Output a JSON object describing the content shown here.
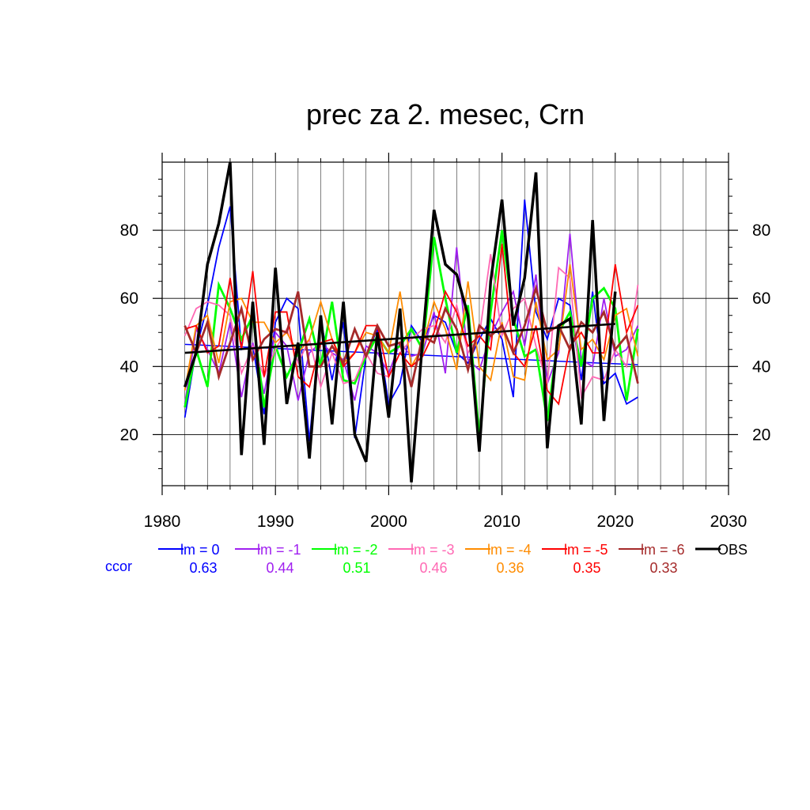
{
  "chart_data": {
    "type": "line",
    "title": "prec za 2. mesec, Crn",
    "xlabel": "",
    "ylabel": "",
    "xlim": [
      1980,
      2030
    ],
    "ylim": [
      5,
      100
    ],
    "x_ticks": [
      1980,
      1990,
      2000,
      2010,
      2020,
      2030
    ],
    "y_ticks": [
      20,
      40,
      60,
      80
    ],
    "grid": true,
    "legend_position": "bottom",
    "ccor_label": "ccor",
    "ccor_color": "#0000ff",
    "x": [
      1982,
      1983,
      1984,
      1985,
      1986,
      1987,
      1988,
      1989,
      1990,
      1991,
      1992,
      1993,
      1994,
      1995,
      1996,
      1997,
      1998,
      1999,
      2000,
      2001,
      2002,
      2003,
      2004,
      2005,
      2006,
      2007,
      2008,
      2009,
      2010,
      2011,
      2012,
      2013,
      2014,
      2015,
      2016,
      2017,
      2018,
      2019,
      2020,
      2021,
      2022
    ],
    "series": [
      {
        "name": "lm = 0",
        "color": "#0000ff",
        "width": 1.8,
        "ccor": "0.63",
        "values": [
          25,
          45,
          58,
          75,
          87,
          45,
          46,
          26,
          53,
          60,
          57,
          18,
          54,
          36,
          53,
          19,
          43,
          51,
          29,
          35,
          52,
          47,
          55,
          53,
          44,
          41,
          48,
          54,
          48,
          31,
          89,
          56,
          48,
          60,
          58,
          36,
          62,
          35,
          38,
          29,
          31
        ],
        "trend": [
          [
            1982,
            46.5
          ],
          [
            2022,
            40.5
          ]
        ]
      },
      {
        "name": "lm = -1",
        "color": "#a020f0",
        "width": 1.8,
        "ccor": "0.44",
        "values": [
          29,
          51,
          45,
          38,
          53,
          31,
          47,
          32,
          50,
          46,
          30,
          44,
          47,
          44,
          42,
          30,
          46,
          44,
          38,
          47,
          43,
          44,
          56,
          38,
          75,
          42,
          39,
          49,
          56,
          62,
          46,
          67,
          35,
          44,
          79,
          42,
          40,
          60,
          43,
          45,
          52
        ]
      },
      {
        "name": "lm = -2",
        "color": "#00ff00",
        "width": 2.8,
        "ccor": "0.51",
        "values": [
          28,
          45,
          34,
          64,
          57,
          48,
          55,
          28,
          46,
          37,
          44,
          54,
          40,
          59,
          36,
          35,
          43,
          49,
          44,
          46,
          51,
          45,
          78,
          60,
          44,
          58,
          19,
          56,
          80,
          54,
          43,
          45,
          24,
          50,
          56,
          40,
          60,
          63,
          57,
          30,
          51
        ]
      },
      {
        "name": "lm = -3",
        "color": "#ff69b4",
        "width": 1.8,
        "ccor": "0.46",
        "values": [
          49,
          57,
          59,
          58,
          55,
          38,
          46,
          37,
          45,
          51,
          41,
          48,
          34,
          44,
          35,
          36,
          44,
          38,
          37,
          44,
          48,
          51,
          52,
          47,
          58,
          44,
          49,
          73,
          49,
          57,
          60,
          46,
          35,
          69,
          66,
          31,
          37,
          36,
          45,
          40,
          64
        ]
      },
      {
        "name": "lm = -4",
        "color": "#ff8c00",
        "width": 1.8,
        "ccor": "0.36",
        "values": [
          33,
          52,
          55,
          41,
          59,
          60,
          53,
          53,
          47,
          50,
          44,
          48,
          59,
          48,
          41,
          44,
          50,
          49,
          44,
          62,
          40,
          46,
          59,
          51,
          39,
          65,
          40,
          36,
          53,
          37,
          36,
          59,
          42,
          45,
          70,
          45,
          48,
          42,
          55,
          57,
          43
        ]
      },
      {
        "name": "lm = -5",
        "color": "#ff0000",
        "width": 1.8,
        "ccor": "0.35",
        "values": [
          51,
          52,
          44,
          46,
          66,
          45,
          68,
          37,
          56,
          56,
          37,
          34,
          47,
          48,
          40,
          44,
          52,
          52,
          37,
          44,
          40,
          43,
          50,
          62,
          56,
          46,
          49,
          45,
          76,
          44,
          40,
          52,
          33,
          29,
          46,
          50,
          44,
          44,
          70,
          50,
          58
        ]
      },
      {
        "name": "lm = -6",
        "color": "#a52a2a",
        "width": 2.8,
        "ccor": "0.33",
        "values": [
          52,
          44,
          53,
          37,
          47,
          57,
          42,
          48,
          51,
          50,
          62,
          40,
          40,
          46,
          41,
          51,
          43,
          52,
          46,
          47,
          34,
          49,
          47,
          57,
          51,
          39,
          52,
          49,
          52,
          44,
          52,
          63,
          50,
          52,
          45,
          53,
          50,
          56,
          45,
          49,
          35
        ]
      },
      {
        "name": "OBS",
        "color": "#000000",
        "width": 3.5,
        "ccor": "",
        "values": [
          34,
          44,
          70,
          82,
          100,
          14,
          59,
          17,
          69,
          29,
          47,
          13,
          55,
          23,
          59,
          20,
          12,
          50,
          25,
          57,
          6,
          48,
          86,
          70,
          67,
          55,
          15,
          65,
          89,
          52,
          66,
          97,
          16,
          52,
          54,
          23,
          83,
          24,
          62,
          null,
          null
        ],
        "trend": [
          [
            1982,
            44
          ],
          [
            2020,
            52.5
          ]
        ]
      }
    ]
  }
}
